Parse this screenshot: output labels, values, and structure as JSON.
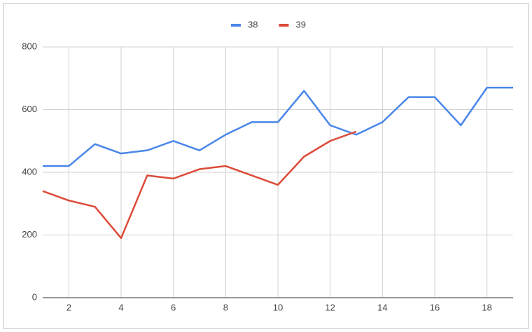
{
  "chart_data": {
    "type": "line",
    "x": [
      1,
      2,
      3,
      4,
      5,
      6,
      7,
      8,
      9,
      10,
      11,
      12,
      13,
      14,
      15,
      16,
      17,
      18,
      19
    ],
    "series": [
      {
        "name": "38",
        "color": "#4a86e8",
        "values": [
          420,
          420,
          490,
          460,
          470,
          500,
          470,
          520,
          560,
          560,
          660,
          550,
          520,
          560,
          640,
          640,
          550,
          670,
          670
        ]
      },
      {
        "name": "39",
        "color": "#dd4b39",
        "values": [
          340,
          310,
          290,
          190,
          390,
          380,
          410,
          420,
          390,
          360,
          450,
          500,
          530,
          null,
          null,
          null,
          null,
          null,
          null
        ]
      }
    ],
    "xlim": [
      1,
      19
    ],
    "xticks": [
      2,
      4,
      6,
      8,
      10,
      12,
      14,
      16,
      18
    ],
    "ylim": [
      0,
      800
    ],
    "yticks": [
      0,
      200,
      400,
      600,
      800
    ],
    "grid": true,
    "legend": "top"
  }
}
